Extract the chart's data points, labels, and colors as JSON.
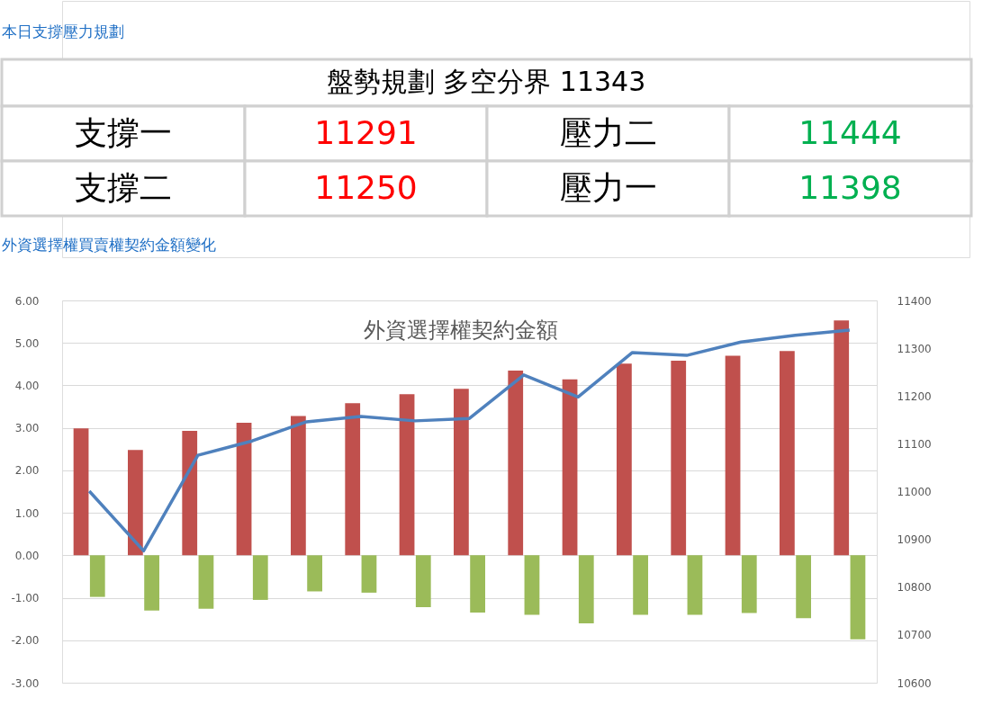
{
  "chart_data": {
    "type": "bar",
    "title": "外資選擇權契約金額",
    "subtitle": "外資選擇權買賣權契約金額變化",
    "annotations": [
      "本日支撐壓力規劃",
      "盤勢規劃 多空分界 11343",
      "支撐一",
      "11291",
      "壓力二",
      "11444",
      "支撐二",
      "11250",
      "壓力一",
      "11398"
    ],
    "categories": [
      null,
      null,
      null,
      null,
      null,
      null,
      null,
      null,
      null,
      null,
      null,
      null,
      null,
      null,
      null
    ],
    "series": [
      {
        "color": "#c0504d",
        "values": [
          2.99,
          2.48,
          2.93,
          3.12,
          3.28,
          3.58,
          3.79,
          3.92,
          4.35,
          4.14,
          4.51,
          4.58,
          4.7,
          4.81,
          5.53
        ]
      },
      {
        "color": "#9bbb59",
        "values": [
          -0.98,
          -1.3,
          -1.26,
          -1.05,
          -0.85,
          -0.88,
          -1.22,
          -1.35,
          -1.4,
          -1.6,
          -1.4,
          -1.4,
          -1.36,
          -1.48,
          -1.98
        ]
      },
      {
        "type": "line",
        "axis": "y2",
        "color": "#4f81bd",
        "values": [
          11001,
          10876,
          11076,
          11106,
          11146,
          11157,
          11148,
          11153,
          11244,
          11198,
          11291,
          11285,
          11313,
          11327,
          11338
        ]
      }
    ],
    "ylim": [
      -3,
      6
    ],
    "yticks": [
      {
        "value": -3,
        "label": "-3.00"
      },
      {
        "value": -2,
        "label": "-2.00"
      },
      {
        "value": -1,
        "label": "-1.00"
      },
      {
        "value": 0,
        "label": "0.00"
      },
      {
        "value": 1,
        "label": "1.00"
      },
      {
        "value": 2,
        "label": "2.00"
      },
      {
        "value": 3,
        "label": "3.00"
      },
      {
        "value": 4,
        "label": "4.00"
      },
      {
        "value": 5,
        "label": "5.00"
      },
      {
        "value": 6,
        "label": "6.00"
      }
    ],
    "y2lim": [
      10600,
      11400
    ],
    "y2ticks": [
      10600,
      10700,
      10800,
      10900,
      11000,
      11100,
      11200,
      11300,
      11400
    ],
    "grid": "y"
  }
}
